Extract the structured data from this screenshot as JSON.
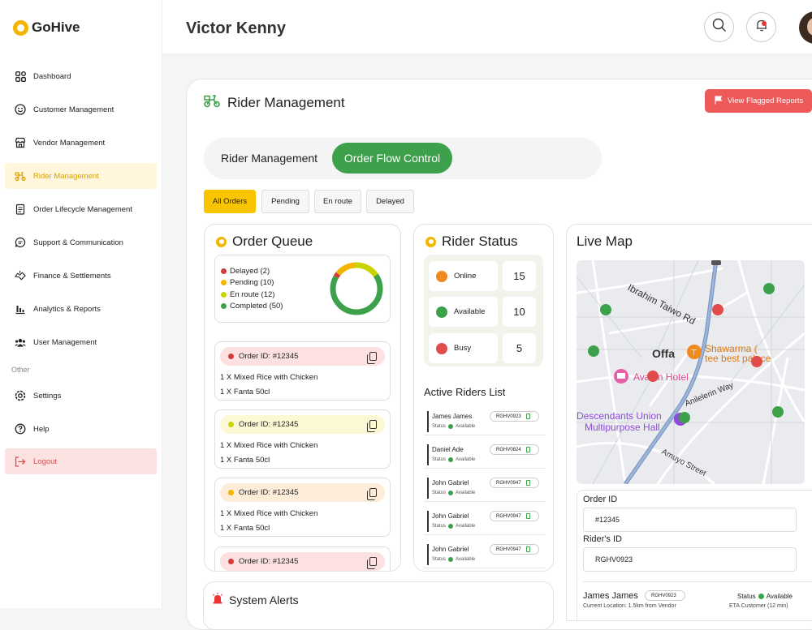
{
  "app": {
    "name": "GoHive"
  },
  "sidebar": {
    "items": [
      {
        "label": "Dashboard",
        "icon": "grid-icon"
      },
      {
        "label": "Customer Management",
        "icon": "smile-icon"
      },
      {
        "label": "Vendor Management",
        "icon": "store-icon"
      },
      {
        "label": "Rider Management",
        "icon": "bike-icon"
      },
      {
        "label": "Order Lifecycle Management",
        "icon": "clipboard-icon"
      },
      {
        "label": "Support & Communication",
        "icon": "chat-icon"
      },
      {
        "label": "Finance & Settlements",
        "icon": "handshake-icon"
      },
      {
        "label": "Analytics & Reports",
        "icon": "chart-icon"
      },
      {
        "label": "User Management",
        "icon": "users-icon"
      }
    ],
    "other_label": "Other",
    "other_items": [
      {
        "label": "Settings",
        "icon": "gear-icon"
      },
      {
        "label": "Help",
        "icon": "help-icon"
      }
    ],
    "logout": "Logout",
    "active_index": 3
  },
  "header": {
    "user_name": "Victor Kenny"
  },
  "page": {
    "title": "Rider Management",
    "flag_button": "View Flagged Reports"
  },
  "segments": {
    "left": "Rider Management",
    "right": "Order Flow Control",
    "active": "Order Flow Control"
  },
  "filters": [
    {
      "label": "All Orders",
      "active": true
    },
    {
      "label": "Pending"
    },
    {
      "label": "En route"
    },
    {
      "label": "Delayed"
    }
  ],
  "order_queue": {
    "title": "Order Queue",
    "legend": [
      {
        "label": "Delayed (2)",
        "color": "#d23b3b"
      },
      {
        "label": "Pending (10)",
        "color": "#f5b400"
      },
      {
        "label": "En route (12)",
        "color": "#c8d400"
      },
      {
        "label": "Completed (50)",
        "color": "#3da04a"
      }
    ],
    "donut_values": [
      2,
      10,
      12,
      50
    ],
    "orders": [
      {
        "id": "Order ID: #12345",
        "color": "#d23b3b",
        "bg": "#fde0e0",
        "lines": [
          "1 X Mixed Rice with Chicken",
          "1 X Fanta 50cl"
        ]
      },
      {
        "id": "Order ID: #12345",
        "color": "#c8d400",
        "bg": "#fbf8d3",
        "lines": [
          "1 X Mixed Rice with Chicken",
          "1 X Fanta 50cl"
        ]
      },
      {
        "id": "Order ID: #12345",
        "color": "#f5b400",
        "bg": "#fdecd8",
        "lines": [
          "1 X Mixed Rice with Chicken",
          "1 X Fanta 50cl"
        ]
      },
      {
        "id": "Order ID: #12345",
        "color": "#d23b3b",
        "bg": "#fde0e0",
        "lines": []
      }
    ]
  },
  "rider_status": {
    "title": "Rider Status",
    "rows": [
      {
        "label": "Online",
        "count": "15",
        "color": "#f08a1c"
      },
      {
        "label": "Available",
        "count": "10",
        "color": "#3da04a"
      },
      {
        "label": "Busy",
        "count": "5",
        "color": "#e14b4b"
      }
    ],
    "list_title": "Active Riders List",
    "riders": [
      {
        "name": "James James",
        "code": "RGHV0923",
        "status_label": "Status",
        "status": "Available"
      },
      {
        "name": "Daniel Ade",
        "code": "RGHV0824",
        "status_label": "Status",
        "status": "Available"
      },
      {
        "name": "John Gabriel",
        "code": "RGHV0947",
        "status_label": "Status",
        "status": "Available"
      },
      {
        "name": "John Gabriel",
        "code": "RGHV0947",
        "status_label": "Status",
        "status": "Available"
      },
      {
        "name": "John Gabriel",
        "code": "RGHV0947",
        "status_label": "Status",
        "status": "Available"
      }
    ]
  },
  "live_map": {
    "title": "Live Map",
    "labels": {
      "street1": "Ibrahim Taiwo Rd",
      "town": "Offa",
      "poi1a": "Shawarma (",
      "poi1b": "tee best palace",
      "hotel": "Avalon Hotel",
      "hall_a": "Descendants Union",
      "hall_b": "Multipurpose Hall",
      "street2": "Anilelerin Way",
      "street3": "Amuyo Street"
    },
    "order_id_label": "Order ID",
    "order_id": "#12345",
    "rider_id_label": "Rider's ID",
    "rider_id": "RGHV0923",
    "rider_name": "James James",
    "rider_code": "RGHV0923",
    "status_label": "Status",
    "status": "Available",
    "location_text": "Current Location: 1.5km from Vendor",
    "eta_text": "ETA Customer (12 min)"
  },
  "system_alerts": {
    "title": "System Alerts"
  },
  "colors": {
    "accent": "#f5b400",
    "green": "#3da04a",
    "red": "#ee5a5a"
  }
}
